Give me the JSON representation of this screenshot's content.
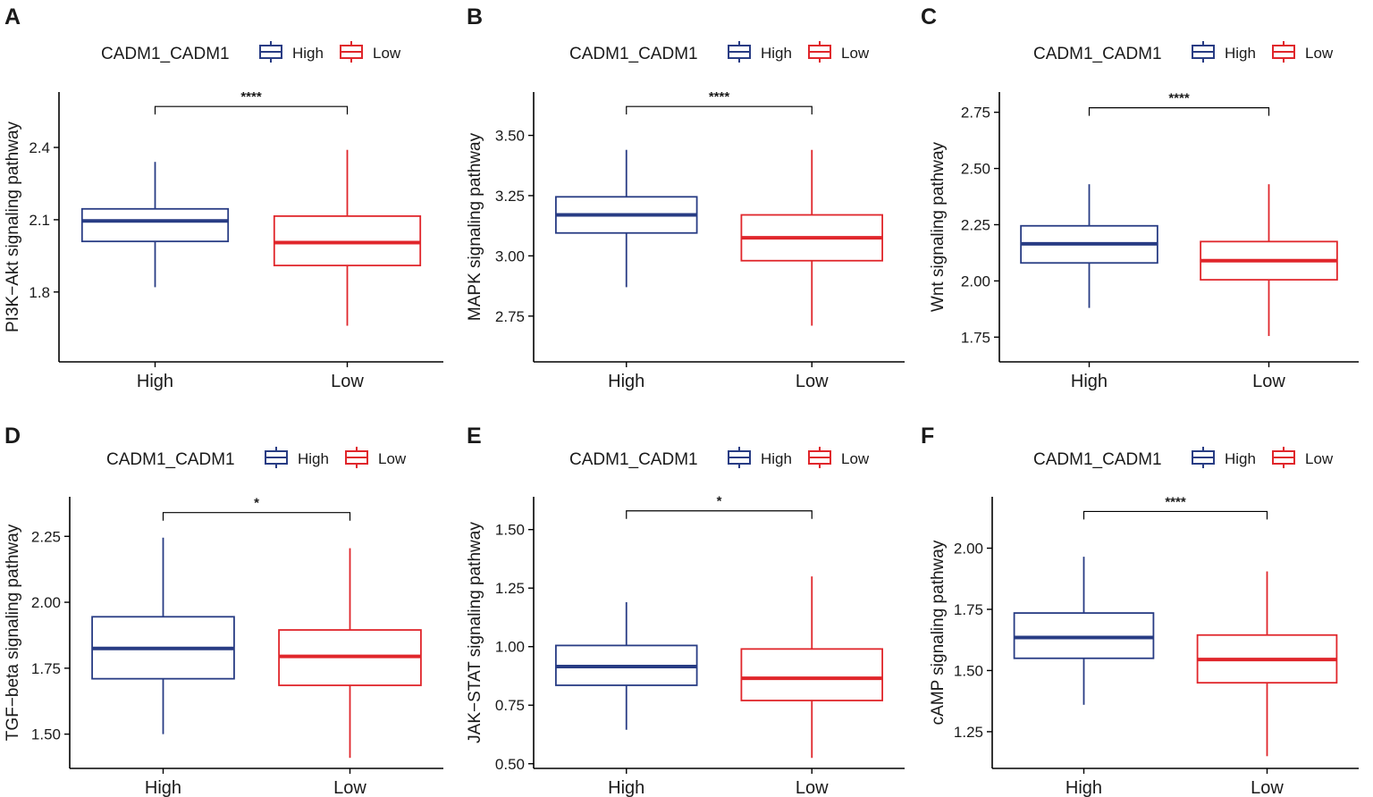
{
  "figure": {
    "legend_title": "CADM1_CADM1",
    "colors": {
      "High": "#283c84",
      "Low": "#e0262b"
    }
  },
  "chart_data": [
    {
      "type": "box",
      "panel_label": "A",
      "legend": {
        "title": "CADM1_CADM1",
        "entries": [
          "High",
          "Low"
        ],
        "position": "top"
      },
      "ylabel": "PI3K−Akt signaling pathway",
      "categories": [
        "High",
        "Low"
      ],
      "yticks": [
        1.8,
        2.1,
        2.4
      ],
      "ytick_labels": [
        "1.8",
        "2.1",
        "2.4"
      ],
      "ylim": [
        1.51,
        2.63
      ],
      "boxes": [
        {
          "group": "High",
          "whisker_low": 1.82,
          "q1": 2.01,
          "median": 2.095,
          "q3": 2.145,
          "whisker_high": 2.34
        },
        {
          "group": "Low",
          "whisker_low": 1.66,
          "q1": 1.91,
          "median": 2.005,
          "q3": 2.115,
          "whisker_high": 2.39
        }
      ],
      "significance": "****",
      "sig_y": 2.57
    },
    {
      "type": "box",
      "panel_label": "B",
      "legend": {
        "title": "CADM1_CADM1",
        "entries": [
          "High",
          "Low"
        ],
        "position": "top"
      },
      "ylabel": "MAPK signaling pathway",
      "categories": [
        "High",
        "Low"
      ],
      "yticks": [
        2.75,
        3.0,
        3.25,
        3.5
      ],
      "ytick_labels": [
        "2.75",
        "3.00",
        "3.25",
        "3.50"
      ],
      "ylim": [
        2.56,
        3.68
      ],
      "boxes": [
        {
          "group": "High",
          "whisker_low": 2.87,
          "q1": 3.095,
          "median": 3.17,
          "q3": 3.245,
          "whisker_high": 3.44
        },
        {
          "group": "Low",
          "whisker_low": 2.71,
          "q1": 2.98,
          "median": 3.075,
          "q3": 3.17,
          "whisker_high": 3.44
        }
      ],
      "significance": "****",
      "sig_y": 3.62
    },
    {
      "type": "box",
      "panel_label": "C",
      "legend": {
        "title": "CADM1_CADM1",
        "entries": [
          "High",
          "Low"
        ],
        "position": "top"
      },
      "ylabel": "Wnt signaling pathway",
      "categories": [
        "High",
        "Low"
      ],
      "yticks": [
        1.75,
        2.0,
        2.25,
        2.5,
        2.75
      ],
      "ytick_labels": [
        "1.75",
        "2.00",
        "2.25",
        "2.50",
        "2.75"
      ],
      "ylim": [
        1.64,
        2.84
      ],
      "boxes": [
        {
          "group": "High",
          "whisker_low": 1.88,
          "q1": 2.08,
          "median": 2.165,
          "q3": 2.245,
          "whisker_high": 2.43
        },
        {
          "group": "Low",
          "whisker_low": 1.755,
          "q1": 2.005,
          "median": 2.09,
          "q3": 2.175,
          "whisker_high": 2.43
        }
      ],
      "significance": "****",
      "sig_y": 2.77
    },
    {
      "type": "box",
      "panel_label": "D",
      "legend": {
        "title": "CADM1_CADM1",
        "entries": [
          "High",
          "Low"
        ],
        "position": "top"
      },
      "ylabel": "TGF−beta signaling pathway",
      "categories": [
        "High",
        "Low"
      ],
      "yticks": [
        1.5,
        1.75,
        2.0,
        2.25
      ],
      "ytick_labels": [
        "1.50",
        "1.75",
        "2.00",
        "2.25"
      ],
      "ylim": [
        1.37,
        2.4
      ],
      "boxes": [
        {
          "group": "High",
          "whisker_low": 1.5,
          "q1": 1.71,
          "median": 1.825,
          "q3": 1.945,
          "whisker_high": 2.245
        },
        {
          "group": "Low",
          "whisker_low": 1.41,
          "q1": 1.685,
          "median": 1.795,
          "q3": 1.895,
          "whisker_high": 2.205
        }
      ],
      "significance": "*",
      "sig_y": 2.34
    },
    {
      "type": "box",
      "panel_label": "E",
      "legend": {
        "title": "CADM1_CADM1",
        "entries": [
          "High",
          "Low"
        ],
        "position": "top"
      },
      "ylabel": "JAK−STAT signaling pathway",
      "categories": [
        "High",
        "Low"
      ],
      "yticks": [
        0.5,
        0.75,
        1.0,
        1.25,
        1.5
      ],
      "ytick_labels": [
        "0.50",
        "0.75",
        "1.00",
        "1.25",
        "1.50"
      ],
      "ylim": [
        0.48,
        1.64
      ],
      "boxes": [
        {
          "group": "High",
          "whisker_low": 0.645,
          "q1": 0.835,
          "median": 0.915,
          "q3": 1.005,
          "whisker_high": 1.19
        },
        {
          "group": "Low",
          "whisker_low": 0.525,
          "q1": 0.77,
          "median": 0.865,
          "q3": 0.99,
          "whisker_high": 1.3
        }
      ],
      "significance": "*",
      "sig_y": 1.58
    },
    {
      "type": "box",
      "panel_label": "F",
      "legend": {
        "title": "CADM1_CADM1",
        "entries": [
          "High",
          "Low"
        ],
        "position": "top"
      },
      "ylabel": "cAMP signaling pathway",
      "categories": [
        "High",
        "Low"
      ],
      "yticks": [
        1.25,
        1.5,
        1.75,
        2.0
      ],
      "ytick_labels": [
        "1.25",
        "1.50",
        "1.75",
        "2.00"
      ],
      "ylim": [
        1.1,
        2.21
      ],
      "boxes": [
        {
          "group": "High",
          "whisker_low": 1.36,
          "q1": 1.55,
          "median": 1.635,
          "q3": 1.735,
          "whisker_high": 1.965
        },
        {
          "group": "Low",
          "whisker_low": 1.15,
          "q1": 1.45,
          "median": 1.545,
          "q3": 1.645,
          "whisker_high": 1.905
        }
      ],
      "significance": "****",
      "sig_y": 2.15
    }
  ]
}
